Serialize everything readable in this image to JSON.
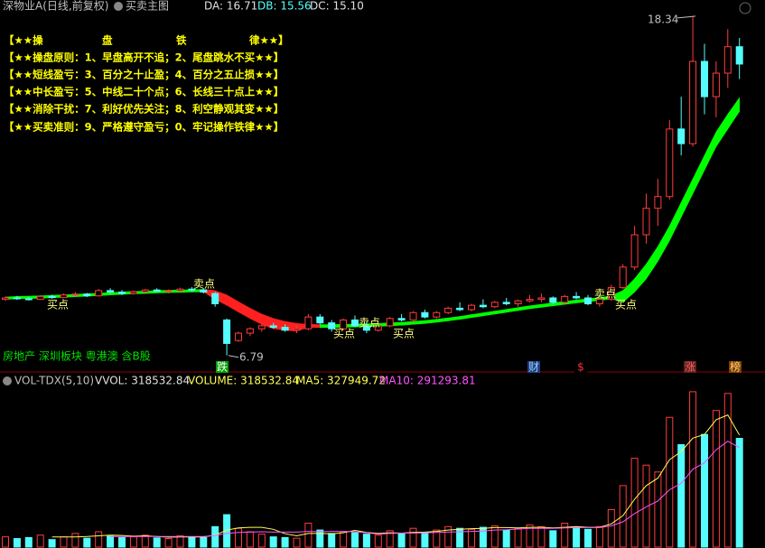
{
  "header": {
    "stock": "深物业A(日线,前复权)",
    "indicator": "买卖主图",
    "readouts": [
      "DA: 16.71",
      "DB: 15.56",
      "DC: 15.10"
    ]
  },
  "rules": {
    "title": [
      "【★★操",
      "盘",
      "铁",
      "律★★】"
    ],
    "rows": [
      "【★★操盘原则：1、早盘高开不追；2、尾盘跳水不买★★】",
      "【★★短线盈亏：3、百分之十止盈；4、百分之五止损★★】",
      "【★★中长盈亏：5、中线二十个点；6、长线三十点上★★】",
      "【★★消除干扰：7、利好优先关注；8、利空静观其变★★】",
      "【★★买卖准则：9、严格遵守盈亏；0、牢记操作铁律★★】"
    ]
  },
  "signals": [
    "买点",
    "卖点",
    "买点",
    "卖点",
    "买点",
    "卖点",
    "买点"
  ],
  "sector": "房地产 深圳板块 粤港澳 含B股",
  "markers": [
    "跌",
    "财",
    "$",
    "涨",
    "榜"
  ],
  "chart_data": [
    {
      "type": "candlestick",
      "ylim": [
        6.66,
        18.46
      ],
      "up_color": "#ff3c3c",
      "down_color": "#54fcfc",
      "high_mark": 18.34,
      "low_mark": 6.79,
      "open": [
        8.7,
        8.75,
        8.72,
        8.7,
        8.8,
        8.76,
        8.85,
        8.88,
        8.82,
        9.0,
        8.95,
        8.9,
        8.96,
        9.02,
        8.98,
        9.0,
        9.05,
        9.02,
        8.9,
        8.0,
        7.3,
        7.55,
        7.7,
        7.8,
        7.75,
        7.65,
        7.7,
        8.1,
        7.9,
        7.7,
        8.0,
        7.8,
        7.65,
        7.8,
        8.05,
        8.0,
        8.25,
        8.1,
        8.25,
        8.4,
        8.35,
        8.5,
        8.45,
        8.6,
        8.55,
        8.65,
        8.7,
        8.75,
        8.6,
        8.8,
        8.75,
        8.55,
        8.7,
        9.1,
        9.8,
        10.9,
        11.8,
        12.2,
        14.5,
        14.0,
        16.8,
        15.6,
        16.4,
        17.3
      ],
      "high": [
        8.8,
        8.82,
        8.78,
        8.85,
        8.86,
        8.9,
        8.95,
        8.92,
        9.05,
        9.08,
        9.02,
        9.0,
        9.06,
        9.08,
        9.04,
        9.1,
        9.12,
        9.08,
        8.95,
        8.05,
        7.6,
        7.75,
        7.85,
        7.9,
        7.85,
        7.8,
        8.2,
        8.2,
        8.0,
        8.05,
        8.15,
        7.95,
        7.85,
        8.1,
        8.2,
        8.3,
        8.35,
        8.3,
        8.45,
        8.6,
        8.55,
        8.7,
        8.65,
        8.75,
        8.7,
        8.85,
        8.9,
        8.8,
        8.85,
        8.95,
        8.85,
        8.75,
        9.2,
        9.9,
        11.2,
        12.3,
        12.8,
        14.8,
        15.6,
        18.34,
        17.4,
        16.8,
        17.9,
        17.6
      ],
      "low": [
        8.65,
        8.68,
        8.66,
        8.68,
        8.72,
        8.74,
        8.8,
        8.78,
        8.8,
        8.9,
        8.85,
        8.86,
        8.92,
        8.95,
        8.9,
        8.96,
        8.98,
        8.9,
        8.45,
        6.79,
        7.25,
        7.45,
        7.6,
        7.7,
        7.6,
        7.55,
        7.65,
        7.85,
        7.6,
        7.65,
        7.75,
        7.55,
        7.6,
        7.75,
        7.95,
        7.95,
        8.05,
        8.05,
        8.2,
        8.3,
        8.3,
        8.4,
        8.4,
        8.5,
        8.45,
        8.6,
        8.6,
        8.55,
        8.55,
        8.7,
        8.5,
        8.45,
        8.65,
        9.05,
        9.7,
        10.6,
        11.2,
        12.1,
        13.6,
        13.9,
        15.0,
        14.9,
        15.9,
        16.2
      ],
      "close": [
        8.75,
        8.72,
        8.7,
        8.8,
        8.76,
        8.85,
        8.88,
        8.82,
        9.0,
        8.95,
        8.9,
        8.96,
        9.02,
        8.98,
        9.0,
        9.05,
        9.02,
        8.95,
        8.55,
        7.2,
        7.55,
        7.7,
        7.8,
        7.75,
        7.65,
        7.7,
        8.1,
        7.9,
        7.7,
        8.0,
        7.8,
        7.65,
        7.8,
        8.05,
        8.0,
        8.25,
        8.1,
        8.25,
        8.4,
        8.35,
        8.5,
        8.45,
        8.6,
        8.55,
        8.65,
        8.7,
        8.75,
        8.6,
        8.8,
        8.75,
        8.55,
        8.7,
        9.1,
        9.8,
        10.9,
        11.8,
        12.2,
        14.5,
        14.0,
        16.8,
        15.6,
        16.4,
        17.3,
        16.71
      ],
      "band_upper": [
        8.78,
        8.8,
        8.81,
        8.82,
        8.84,
        8.85,
        8.87,
        8.89,
        8.91,
        8.93,
        8.95,
        8.97,
        8.98,
        9.0,
        9.01,
        9.02,
        9.03,
        9.04,
        9.0,
        8.85,
        8.62,
        8.4,
        8.2,
        8.05,
        7.95,
        7.88,
        7.85,
        7.84,
        7.84,
        7.85,
        7.86,
        7.87,
        7.88,
        7.9,
        7.92,
        7.95,
        7.98,
        8.02,
        8.07,
        8.12,
        8.18,
        8.24,
        8.3,
        8.36,
        8.42,
        8.48,
        8.53,
        8.58,
        8.63,
        8.68,
        8.72,
        8.76,
        8.82,
        9.0,
        9.4,
        9.9,
        10.5,
        11.2,
        12.0,
        12.8,
        13.6,
        14.4,
        15.0,
        15.56
      ],
      "band_lower": [
        8.7,
        8.72,
        8.73,
        8.74,
        8.76,
        8.77,
        8.79,
        8.81,
        8.83,
        8.85,
        8.87,
        8.89,
        8.9,
        8.92,
        8.93,
        8.94,
        8.95,
        8.96,
        8.7,
        8.5,
        8.27,
        8.05,
        7.85,
        7.7,
        7.65,
        7.62,
        7.75,
        7.74,
        7.74,
        7.75,
        7.76,
        7.77,
        7.78,
        7.8,
        7.82,
        7.85,
        7.88,
        7.92,
        7.97,
        8.02,
        8.08,
        8.14,
        8.2,
        8.26,
        8.32,
        8.38,
        8.43,
        8.48,
        8.53,
        8.58,
        8.62,
        8.66,
        8.72,
        8.6,
        8.95,
        9.4,
        10.0,
        10.7,
        11.5,
        12.3,
        13.1,
        13.9,
        14.5,
        15.1
      ],
      "band_up_color": "#00ff00",
      "band_down_color": "#ff2020"
    },
    {
      "type": "volume",
      "title": "VOL-TDX(5,10)",
      "readouts": [
        "VVOL: 318532.84",
        "VOLUME: 318532.84",
        "MA5: 327949.72",
        "MA10: 291293.81"
      ],
      "ylim": [
        0,
        460000
      ],
      "volume": [
        30000,
        25000,
        28000,
        35000,
        22000,
        30000,
        40000,
        26000,
        45000,
        32000,
        28000,
        30000,
        35000,
        27000,
        25000,
        33000,
        30000,
        28000,
        60000,
        95000,
        55000,
        45000,
        38000,
        30000,
        28000,
        26000,
        70000,
        50000,
        40000,
        45000,
        42000,
        38000,
        35000,
        48000,
        40000,
        55000,
        42000,
        50000,
        60000,
        55000,
        52000,
        58000,
        62000,
        50000,
        55000,
        65000,
        60000,
        48000,
        70000,
        58000,
        52000,
        60000,
        110000,
        180000,
        260000,
        240000,
        220000,
        380000,
        300000,
        455000,
        330000,
        400000,
        450000,
        318532.84
      ],
      "ma5": [
        null,
        null,
        null,
        null,
        30000,
        30000,
        30000,
        31000,
        33000,
        35000,
        34000,
        32000,
        33000,
        31000,
        29000,
        30000,
        30000,
        30000,
        35000,
        50000,
        56000,
        58000,
        58000,
        52000,
        39000,
        33000,
        40000,
        40000,
        39000,
        42000,
        49000,
        43000,
        40000,
        42000,
        41000,
        43000,
        44000,
        46000,
        50000,
        52000,
        54000,
        55000,
        57000,
        57000,
        56000,
        58000,
        58000,
        56000,
        58000,
        60000,
        58000,
        58000,
        68000,
        92000,
        140000,
        180000,
        202000,
        256000,
        280000,
        319000,
        330000,
        373000,
        387000,
        327949.72
      ],
      "ma10": [
        null,
        null,
        null,
        null,
        null,
        null,
        null,
        null,
        null,
        31000,
        31000,
        31000,
        31000,
        31000,
        31000,
        31000,
        31000,
        31000,
        34000,
        40000,
        43000,
        44000,
        45000,
        44000,
        44000,
        44000,
        46000,
        45000,
        46000,
        46000,
        45000,
        42000,
        38000,
        40000,
        41000,
        41000,
        42000,
        43000,
        44000,
        45000,
        46000,
        47000,
        50000,
        51000,
        53000,
        55000,
        55000,
        55000,
        56000,
        57000,
        57000,
        57000,
        62000,
        74000,
        98000,
        118000,
        135000,
        168000,
        187000,
        228000,
        247000,
        285000,
        310000,
        291293.81
      ],
      "ma5_color": "#ffff54",
      "ma10_color": "#ff54ff"
    }
  ]
}
